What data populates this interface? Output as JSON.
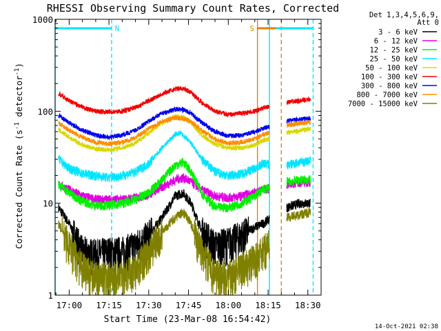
{
  "chart_data": {
    "type": "line",
    "title": "RHESSI Observing Summary Count Rates, Corrected",
    "xlabel": "Start Time (23-Mar-08 16:54:42)",
    "ylabel_main": "Corrected Count Rate (s",
    "ylabel_sup1": "-1",
    "ylabel_mid": " detector",
    "ylabel_sup2": "-1",
    "ylabel_end": ")",
    "yscale": "log",
    "ylim": [
      1,
      1000
    ],
    "xlim": [
      "16:54:42",
      "18:35:00"
    ],
    "xticks": [
      "17:00",
      "17:15",
      "17:30",
      "17:45",
      "18:00",
      "18:15",
      "18:30"
    ],
    "yticks": [
      "1",
      "10",
      "100",
      "1000"
    ],
    "legend_header": [
      "Det 1,3,4,5,6,9,",
      "Att 0"
    ],
    "legend_position": "right",
    "footer_date": "14-Oct-2021 02:38",
    "flags": {
      "N": {
        "label": "N",
        "color": "#00e5ff",
        "segments": [
          [
            "16:54:42",
            "17:16:00"
          ],
          [
            "18:17:00",
            "18:32:00"
          ]
        ]
      },
      "S": {
        "label": "S",
        "color": "#e57f00",
        "segments": [
          [
            "18:11:00",
            "18:18:00"
          ]
        ]
      }
    },
    "night_lines": {
      "color": "#00e5ff",
      "solid": [
        "16:54:42",
        "18:15:30"
      ],
      "dashed": [
        "17:16:00",
        "18:32:00"
      ]
    },
    "saa_lines": {
      "color": "#e57f00",
      "solid": [
        "18:11:00"
      ],
      "dashed": [
        "18:20:00"
      ]
    },
    "gaps": [
      [
        "18:15:30",
        "18:22:00"
      ]
    ],
    "series": [
      {
        "name": "3 - 6 keV",
        "color": "#000000",
        "points": [
          [
            "16:56",
            9
          ],
          [
            "17:00",
            6
          ],
          [
            "17:05",
            3
          ],
          [
            "17:10",
            2.8
          ],
          [
            "17:15",
            3
          ],
          [
            "17:20",
            3
          ],
          [
            "17:25",
            3.5
          ],
          [
            "17:30",
            4.5
          ],
          [
            "17:35",
            7
          ],
          [
            "17:40",
            12
          ],
          [
            "17:43",
            13
          ],
          [
            "17:46",
            10
          ],
          [
            "17:50",
            5
          ],
          [
            "17:55",
            3.5
          ],
          [
            "18:00",
            3.8
          ],
          [
            "18:05",
            4.5
          ],
          [
            "18:10",
            5.5
          ],
          [
            "18:13",
            6
          ],
          [
            "18:22",
            9
          ],
          [
            "18:27",
            10
          ],
          [
            "18:31",
            10
          ]
        ]
      },
      {
        "name": "6 - 12 keV",
        "color": "#e000e0",
        "points": [
          [
            "16:56",
            16
          ],
          [
            "17:00",
            14
          ],
          [
            "17:05",
            12
          ],
          [
            "17:10",
            11
          ],
          [
            "17:15",
            11
          ],
          [
            "17:20",
            11
          ],
          [
            "17:25",
            11.5
          ],
          [
            "17:30",
            12.5
          ],
          [
            "17:35",
            15
          ],
          [
            "17:40",
            18
          ],
          [
            "17:43",
            19
          ],
          [
            "17:46",
            17
          ],
          [
            "17:50",
            14
          ],
          [
            "17:55",
            12
          ],
          [
            "18:00",
            11.5
          ],
          [
            "18:05",
            12
          ],
          [
            "18:10",
            13
          ],
          [
            "18:13",
            14
          ],
          [
            "18:22",
            16
          ],
          [
            "18:27",
            17
          ],
          [
            "18:31",
            17
          ]
        ]
      },
      {
        "name": "12 - 25 keV",
        "color": "#00f000",
        "points": [
          [
            "16:56",
            16
          ],
          [
            "17:00",
            13
          ],
          [
            "17:05",
            10.5
          ],
          [
            "17:10",
            9.5
          ],
          [
            "17:15",
            9.5
          ],
          [
            "17:20",
            10
          ],
          [
            "17:25",
            11
          ],
          [
            "17:30",
            13
          ],
          [
            "17:35",
            18
          ],
          [
            "17:40",
            26
          ],
          [
            "17:43",
            28
          ],
          [
            "17:46",
            22
          ],
          [
            "17:50",
            13
          ],
          [
            "17:55",
            9
          ],
          [
            "18:00",
            9
          ],
          [
            "18:05",
            10
          ],
          [
            "18:10",
            12
          ],
          [
            "18:13",
            14
          ],
          [
            "18:22",
            17
          ],
          [
            "18:27",
            18
          ],
          [
            "18:31",
            18
          ]
        ]
      },
      {
        "name": "25 - 50 keV",
        "color": "#00e5ff",
        "points": [
          [
            "16:56",
            30
          ],
          [
            "17:00",
            24
          ],
          [
            "17:05",
            21
          ],
          [
            "17:10",
            20
          ],
          [
            "17:15",
            19
          ],
          [
            "17:20",
            20
          ],
          [
            "17:25",
            22
          ],
          [
            "17:30",
            27
          ],
          [
            "17:35",
            40
          ],
          [
            "17:40",
            56
          ],
          [
            "17:42",
            58
          ],
          [
            "17:46",
            45
          ],
          [
            "17:50",
            30
          ],
          [
            "17:55",
            22
          ],
          [
            "18:00",
            20
          ],
          [
            "18:05",
            21
          ],
          [
            "18:10",
            24
          ],
          [
            "18:13",
            27
          ],
          [
            "18:22",
            26
          ],
          [
            "18:27",
            28
          ],
          [
            "18:31",
            29
          ]
        ]
      },
      {
        "name": "50 - 100 keV",
        "color": "#d8d800",
        "points": [
          [
            "16:56",
            63
          ],
          [
            "17:00",
            52
          ],
          [
            "17:05",
            43
          ],
          [
            "17:10",
            39
          ],
          [
            "17:15",
            38
          ],
          [
            "17:20",
            40
          ],
          [
            "17:25",
            45
          ],
          [
            "17:30",
            58
          ],
          [
            "17:35",
            75
          ],
          [
            "17:40",
            88
          ],
          [
            "17:43",
            86
          ],
          [
            "17:46",
            75
          ],
          [
            "17:50",
            55
          ],
          [
            "17:55",
            44
          ],
          [
            "18:00",
            40
          ],
          [
            "18:05",
            40
          ],
          [
            "18:10",
            43
          ],
          [
            "18:13",
            48
          ],
          [
            "18:22",
            58
          ],
          [
            "18:27",
            62
          ],
          [
            "18:31",
            65
          ]
        ]
      },
      {
        "name": "100 - 300 keV",
        "color": "#f00000",
        "points": [
          [
            "16:56",
            155
          ],
          [
            "17:00",
            130
          ],
          [
            "17:05",
            110
          ],
          [
            "17:10",
            100
          ],
          [
            "17:15",
            98
          ],
          [
            "17:20",
            100
          ],
          [
            "17:25",
            110
          ],
          [
            "17:30",
            130
          ],
          [
            "17:35",
            155
          ],
          [
            "17:40",
            175
          ],
          [
            "17:43",
            178
          ],
          [
            "17:46",
            160
          ],
          [
            "17:50",
            125
          ],
          [
            "17:55",
            100
          ],
          [
            "18:00",
            92
          ],
          [
            "18:05",
            95
          ],
          [
            "18:10",
            100
          ],
          [
            "18:13",
            108
          ],
          [
            "18:22",
            125
          ],
          [
            "18:27",
            130
          ],
          [
            "18:31",
            135
          ]
        ]
      },
      {
        "name": "300 - 800 keV",
        "color": "#0000f0",
        "points": [
          [
            "16:56",
            90
          ],
          [
            "17:00",
            75
          ],
          [
            "17:05",
            62
          ],
          [
            "17:10",
            55
          ],
          [
            "17:15",
            52
          ],
          [
            "17:20",
            55
          ],
          [
            "17:25",
            62
          ],
          [
            "17:30",
            78
          ],
          [
            "17:35",
            95
          ],
          [
            "17:40",
            105
          ],
          [
            "17:43",
            104
          ],
          [
            "17:46",
            95
          ],
          [
            "17:50",
            75
          ],
          [
            "17:55",
            60
          ],
          [
            "18:00",
            54
          ],
          [
            "18:05",
            55
          ],
          [
            "18:10",
            60
          ],
          [
            "18:13",
            65
          ],
          [
            "18:22",
            78
          ],
          [
            "18:27",
            82
          ],
          [
            "18:31",
            84
          ]
        ]
      },
      {
        "name": "800 - 7000 keV",
        "color": "#ff8c00",
        "points": [
          [
            "16:56",
            75
          ],
          [
            "17:00",
            62
          ],
          [
            "17:05",
            52
          ],
          [
            "17:10",
            46
          ],
          [
            "17:15",
            44
          ],
          [
            "17:20",
            46
          ],
          [
            "17:25",
            52
          ],
          [
            "17:30",
            65
          ],
          [
            "17:35",
            78
          ],
          [
            "17:40",
            85
          ],
          [
            "17:43",
            84
          ],
          [
            "17:46",
            77
          ],
          [
            "17:50",
            62
          ],
          [
            "17:55",
            50
          ],
          [
            "18:00",
            45
          ],
          [
            "18:05",
            46
          ],
          [
            "18:10",
            50
          ],
          [
            "18:13",
            55
          ],
          [
            "18:22",
            70
          ],
          [
            "18:27",
            74
          ],
          [
            "18:31",
            76
          ]
        ]
      },
      {
        "name": "7000 - 15000 keV",
        "color": "#808000",
        "points": [
          [
            "16:56",
            6
          ],
          [
            "17:00",
            3.5
          ],
          [
            "17:05",
            2
          ],
          [
            "17:10",
            1.6
          ],
          [
            "17:15",
            1.6
          ],
          [
            "17:20",
            1.7
          ],
          [
            "17:25",
            2
          ],
          [
            "17:30",
            3
          ],
          [
            "17:35",
            5
          ],
          [
            "17:40",
            7
          ],
          [
            "17:43",
            8
          ],
          [
            "17:46",
            6
          ],
          [
            "17:50",
            3
          ],
          [
            "17:55",
            1.7
          ],
          [
            "18:00",
            1.6
          ],
          [
            "18:05",
            2
          ],
          [
            "18:10",
            2.5
          ],
          [
            "18:13",
            3
          ],
          [
            "18:22",
            7
          ],
          [
            "18:27",
            7.5
          ],
          [
            "18:31",
            8
          ]
        ]
      }
    ]
  }
}
